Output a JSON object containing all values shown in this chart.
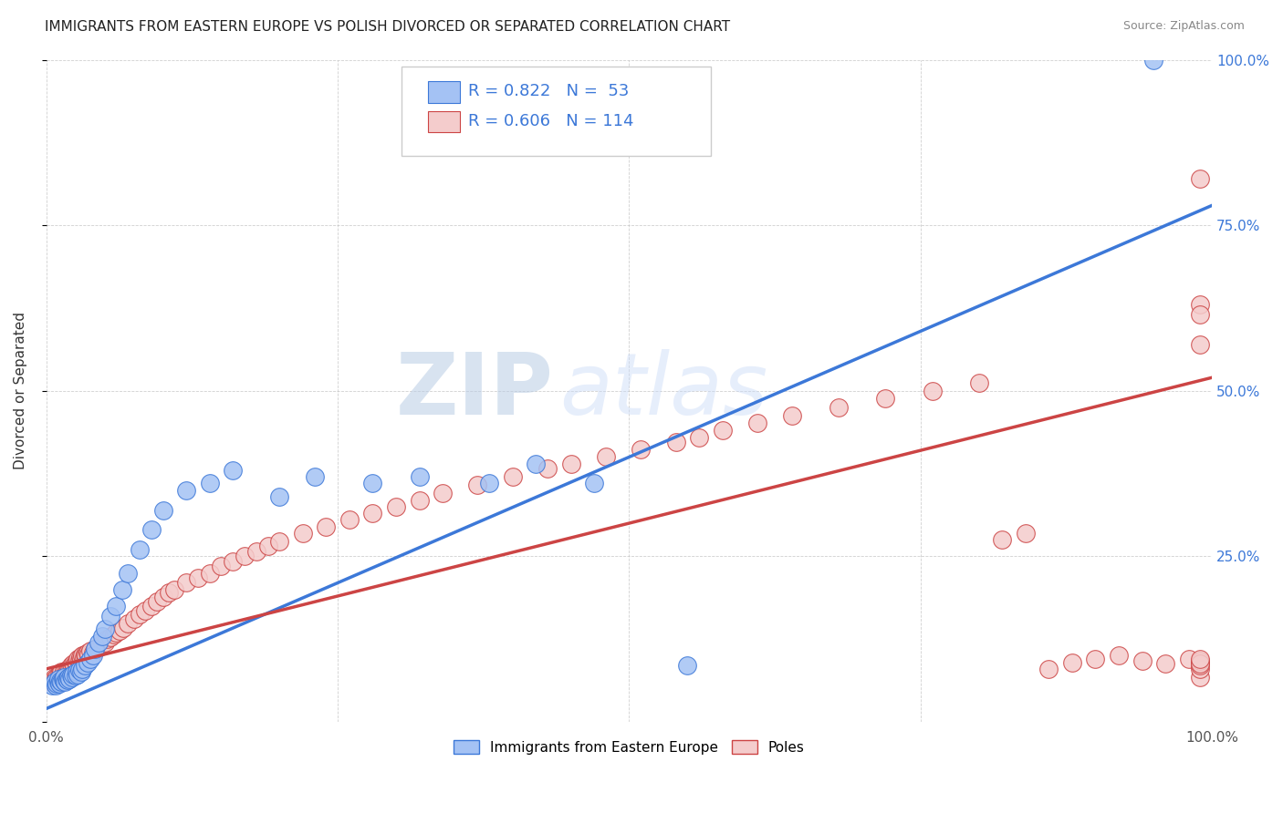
{
  "title": "IMMIGRANTS FROM EASTERN EUROPE VS POLISH DIVORCED OR SEPARATED CORRELATION CHART",
  "source": "Source: ZipAtlas.com",
  "ylabel": "Divorced or Separated",
  "xlim": [
    0,
    1.0
  ],
  "ylim": [
    0,
    1.0
  ],
  "color_blue": "#a4c2f4",
  "color_pink": "#f4cccc",
  "line_blue": "#3c78d8",
  "line_pink": "#cc4444",
  "watermark_zip": "ZIP",
  "watermark_atlas": "atlas",
  "blue_line": {
    "x0": 0.0,
    "x1": 1.0,
    "y0": 0.02,
    "y1": 0.78
  },
  "pink_line": {
    "x0": 0.0,
    "x1": 1.0,
    "y0": 0.08,
    "y1": 0.52
  },
  "legend_bottom": [
    "Immigrants from Eastern Europe",
    "Poles"
  ],
  "background_color": "#ffffff",
  "grid_color": "#bbbbbb",
  "blue_x": [
    0.005,
    0.007,
    0.008,
    0.009,
    0.01,
    0.01,
    0.011,
    0.012,
    0.013,
    0.014,
    0.015,
    0.015,
    0.016,
    0.017,
    0.018,
    0.019,
    0.02,
    0.021,
    0.022,
    0.023,
    0.025,
    0.026,
    0.027,
    0.028,
    0.03,
    0.031,
    0.033,
    0.035,
    0.038,
    0.04,
    0.042,
    0.045,
    0.048,
    0.05,
    0.055,
    0.06,
    0.065,
    0.07,
    0.08,
    0.09,
    0.1,
    0.12,
    0.14,
    0.16,
    0.2,
    0.23,
    0.28,
    0.32,
    0.38,
    0.42,
    0.47,
    0.55,
    0.95
  ],
  "blue_y": [
    0.055,
    0.06,
    0.055,
    0.058,
    0.06,
    0.065,
    0.058,
    0.062,
    0.06,
    0.065,
    0.062,
    0.068,
    0.06,
    0.065,
    0.063,
    0.068,
    0.065,
    0.07,
    0.068,
    0.072,
    0.07,
    0.075,
    0.072,
    0.078,
    0.075,
    0.08,
    0.085,
    0.09,
    0.095,
    0.1,
    0.11,
    0.12,
    0.13,
    0.14,
    0.16,
    0.175,
    0.2,
    0.225,
    0.26,
    0.29,
    0.32,
    0.35,
    0.36,
    0.38,
    0.34,
    0.37,
    0.36,
    0.37,
    0.36,
    0.39,
    0.36,
    0.085,
    1.0
  ],
  "pink_x": [
    0.004,
    0.005,
    0.006,
    0.007,
    0.007,
    0.008,
    0.008,
    0.009,
    0.009,
    0.01,
    0.01,
    0.011,
    0.011,
    0.012,
    0.012,
    0.013,
    0.013,
    0.014,
    0.015,
    0.015,
    0.016,
    0.017,
    0.018,
    0.019,
    0.02,
    0.021,
    0.022,
    0.023,
    0.024,
    0.025,
    0.026,
    0.027,
    0.028,
    0.029,
    0.03,
    0.031,
    0.032,
    0.033,
    0.034,
    0.035,
    0.036,
    0.038,
    0.04,
    0.042,
    0.044,
    0.046,
    0.048,
    0.05,
    0.052,
    0.055,
    0.058,
    0.06,
    0.063,
    0.066,
    0.07,
    0.075,
    0.08,
    0.085,
    0.09,
    0.095,
    0.1,
    0.105,
    0.11,
    0.12,
    0.13,
    0.14,
    0.15,
    0.16,
    0.17,
    0.18,
    0.19,
    0.2,
    0.22,
    0.24,
    0.26,
    0.28,
    0.3,
    0.32,
    0.34,
    0.37,
    0.4,
    0.43,
    0.45,
    0.48,
    0.51,
    0.54,
    0.56,
    0.58,
    0.61,
    0.64,
    0.68,
    0.72,
    0.76,
    0.8,
    0.82,
    0.84,
    0.86,
    0.88,
    0.9,
    0.92,
    0.94,
    0.96,
    0.98,
    0.99,
    0.99,
    0.99,
    0.99,
    0.99,
    0.99,
    0.99,
    0.99,
    0.99,
    0.99,
    0.99
  ],
  "pink_y": [
    0.06,
    0.062,
    0.06,
    0.065,
    0.068,
    0.06,
    0.065,
    0.062,
    0.068,
    0.06,
    0.065,
    0.068,
    0.072,
    0.065,
    0.07,
    0.068,
    0.075,
    0.072,
    0.068,
    0.075,
    0.072,
    0.078,
    0.075,
    0.08,
    0.078,
    0.085,
    0.082,
    0.088,
    0.085,
    0.09,
    0.088,
    0.095,
    0.092,
    0.098,
    0.095,
    0.1,
    0.098,
    0.102,
    0.1,
    0.105,
    0.102,
    0.108,
    0.105,
    0.11,
    0.112,
    0.115,
    0.118,
    0.12,
    0.125,
    0.128,
    0.132,
    0.135,
    0.138,
    0.142,
    0.148,
    0.155,
    0.162,
    0.168,
    0.175,
    0.182,
    0.188,
    0.195,
    0.2,
    0.21,
    0.218,
    0.225,
    0.235,
    0.242,
    0.25,
    0.258,
    0.265,
    0.272,
    0.285,
    0.295,
    0.305,
    0.315,
    0.325,
    0.335,
    0.345,
    0.358,
    0.37,
    0.382,
    0.39,
    0.4,
    0.412,
    0.422,
    0.43,
    0.44,
    0.452,
    0.462,
    0.475,
    0.488,
    0.5,
    0.512,
    0.275,
    0.285,
    0.08,
    0.09,
    0.095,
    0.1,
    0.092,
    0.088,
    0.095,
    0.068,
    0.63,
    0.82,
    0.615,
    0.57,
    0.09,
    0.08,
    0.085,
    0.092,
    0.088,
    0.095
  ]
}
